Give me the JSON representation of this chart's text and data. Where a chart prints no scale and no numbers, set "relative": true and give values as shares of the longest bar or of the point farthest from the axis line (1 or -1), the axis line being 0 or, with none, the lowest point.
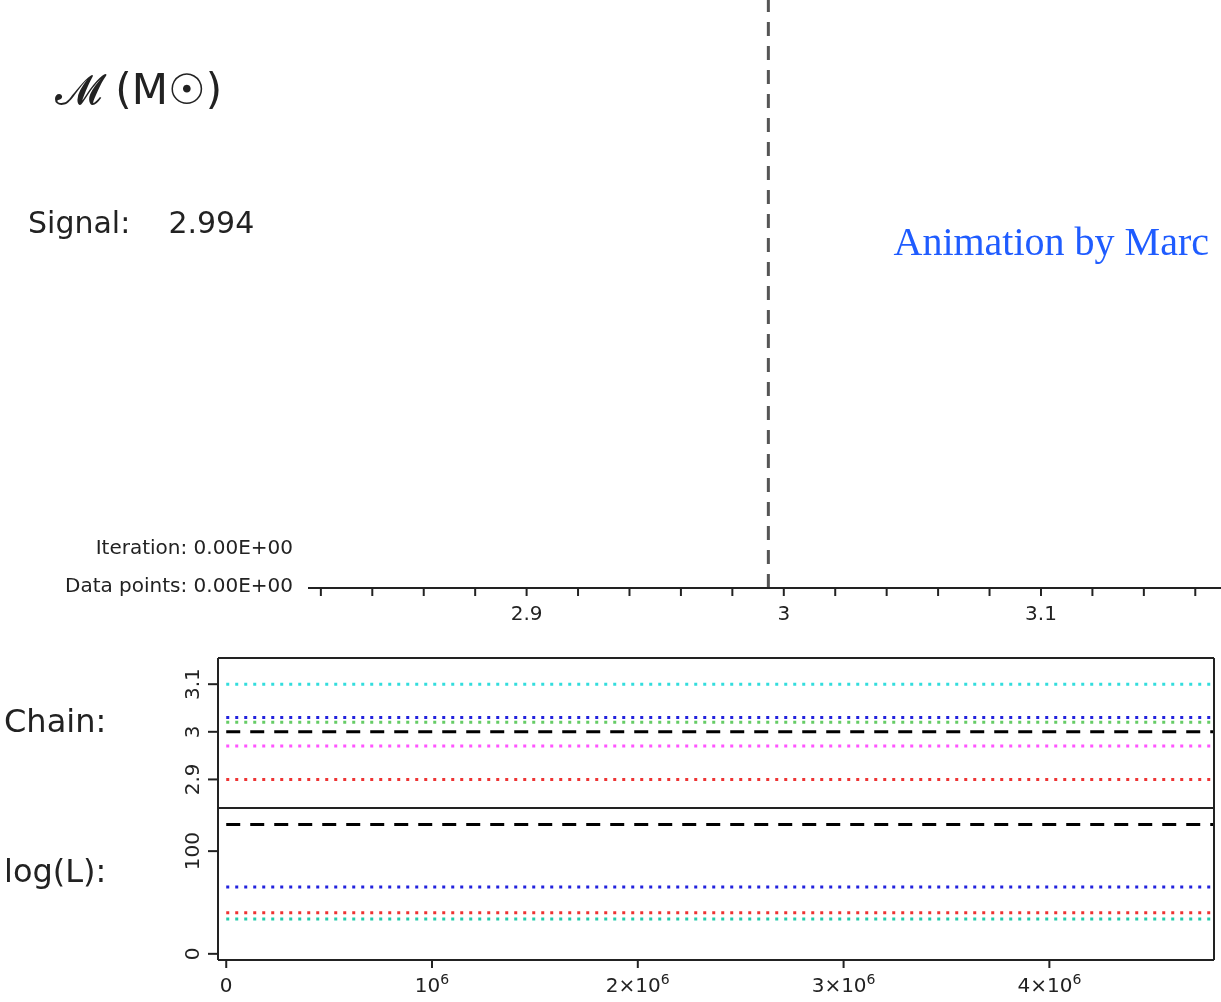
{
  "chart_data": [
    {
      "type": "line",
      "relative": true,
      "title": "𝓜 (M☉)",
      "annotations": [
        "Signal:    2.994",
        "Iteration: 0.00E+00",
        "Data points: 0.00E+00",
        "Animation by Marc"
      ],
      "xlim": [
        2.815,
        3.17
      ],
      "xticks": [
        {
          "value": 2.82,
          "label": null
        },
        {
          "value": 2.84,
          "label": null
        },
        {
          "value": 2.86,
          "label": null
        },
        {
          "value": 2.88,
          "label": null
        },
        2.9,
        {
          "value": 2.92,
          "label": null
        },
        {
          "value": 2.94,
          "label": null
        },
        {
          "value": 2.96,
          "label": null
        },
        {
          "value": 2.98,
          "label": null
        },
        3,
        {
          "value": 3.02,
          "label": null
        },
        {
          "value": 3.04,
          "label": null
        },
        {
          "value": 3.06,
          "label": null
        },
        {
          "value": 3.08,
          "label": null
        },
        3.1,
        {
          "value": 3.12,
          "label": null
        },
        {
          "value": 3.14,
          "label": null
        },
        {
          "value": 3.16,
          "label": null
        }
      ],
      "series": [
        {
          "color": "#555555",
          "line_style": "dashed",
          "x": [
            2.994,
            2.994
          ],
          "values": [
            0,
            1
          ]
        }
      ]
    },
    {
      "type": "line",
      "ylabel": "Chain:",
      "xlim": [
        -40000,
        4800000
      ],
      "xticks": [
        0,
        1000000,
        2000000,
        3000000,
        4000000
      ],
      "ylim": [
        2.84,
        3.155
      ],
      "yticks": [
        2.9,
        3,
        3.1
      ],
      "tick_labels": "y",
      "marker": "none",
      "line_style": "dotted",
      "series": [
        {
          "color": "#33dddd",
          "x": [
            0,
            4800000
          ],
          "values": [
            3.1,
            3.1
          ]
        },
        {
          "color": "#2222dd",
          "x": [
            0,
            4800000
          ],
          "values": [
            3.03,
            3.03
          ]
        },
        {
          "color": "#66cc66",
          "x": [
            0,
            4800000
          ],
          "values": [
            3.02,
            3.02
          ]
        },
        {
          "color": "#000000",
          "x": [
            0,
            4800000
          ],
          "values": [
            3.0,
            3.0
          ],
          "line_style": "dashed"
        },
        {
          "color": "#ff55ff",
          "x": [
            0,
            4800000
          ],
          "values": [
            2.97,
            2.97
          ]
        },
        {
          "color": "#ee3333",
          "x": [
            0,
            4800000
          ],
          "values": [
            2.9,
            2.9
          ]
        }
      ]
    },
    {
      "type": "line",
      "ylabel": "log(L):",
      "xlim": [
        -40000,
        4800000
      ],
      "xticks": [
        0,
        {
          "value": 1000000,
          "label": "10$^{6}$"
        },
        {
          "value": 2000000,
          "label": "2×10$^{6}$"
        },
        {
          "value": 3000000,
          "label": "3×10$^{6}$"
        },
        {
          "value": 4000000,
          "label": "4×10$^{6}$"
        }
      ],
      "ylim": [
        -6,
        142
      ],
      "yticks": [
        0,
        100
      ],
      "marker": "none",
      "line_style": "dotted",
      "series": [
        {
          "color": "#000000",
          "x": [
            0,
            4800000
          ],
          "values": [
            126,
            126
          ],
          "line_style": "dashed"
        },
        {
          "color": "#2222dd",
          "x": [
            0,
            4800000
          ],
          "values": [
            65,
            65
          ]
        },
        {
          "color": "#ee3333",
          "x": [
            0,
            4800000
          ],
          "values": [
            40,
            40
          ]
        },
        {
          "color": "#22ccaa",
          "x": [
            0,
            4800000
          ],
          "values": [
            34,
            34
          ]
        }
      ]
    }
  ]
}
